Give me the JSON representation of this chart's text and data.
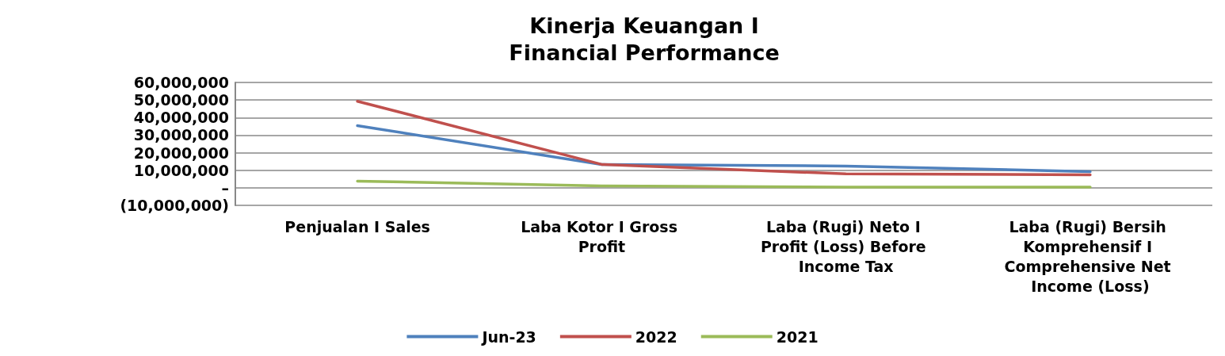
{
  "chart_data": {
    "type": "line",
    "title": "Kinerja Keuangan I\nFinancial Performance",
    "categories": [
      "Penjualan I Sales",
      "Laba Kotor I Gross Profit",
      "Laba (Rugi) Neto I Profit (Loss) Before Income Tax",
      "Laba (Rugi) Bersih Komprehensif I Comprehensive Net Income (Loss)"
    ],
    "series": [
      {
        "name": "Jun-23",
        "color": "#4f81bd",
        "values": [
          35400000,
          13300000,
          12400000,
          9200000
        ]
      },
      {
        "name": "2022",
        "color": "#c0504d",
        "values": [
          49300000,
          13300000,
          7900000,
          7400000
        ]
      },
      {
        "name": "2021",
        "color": "#9bbb59",
        "values": [
          3800000,
          1100000,
          400000,
          400000
        ]
      }
    ],
    "ylim": [
      -10000000,
      60000000
    ],
    "yticks": [
      {
        "value": -10000000,
        "label": "(10,000,000)"
      },
      {
        "value": 0,
        "label": "–"
      },
      {
        "value": 10000000,
        "label": "10,000,000"
      },
      {
        "value": 20000000,
        "label": "20,000,000"
      },
      {
        "value": 30000000,
        "label": "30,000,000"
      },
      {
        "value": 40000000,
        "label": "40,000,000"
      },
      {
        "value": 50000000,
        "label": "50,000,000"
      },
      {
        "value": 60000000,
        "label": "60,000,000"
      }
    ],
    "grid": "y",
    "legend": "bottom",
    "marker": "none",
    "line_style": "solid"
  }
}
